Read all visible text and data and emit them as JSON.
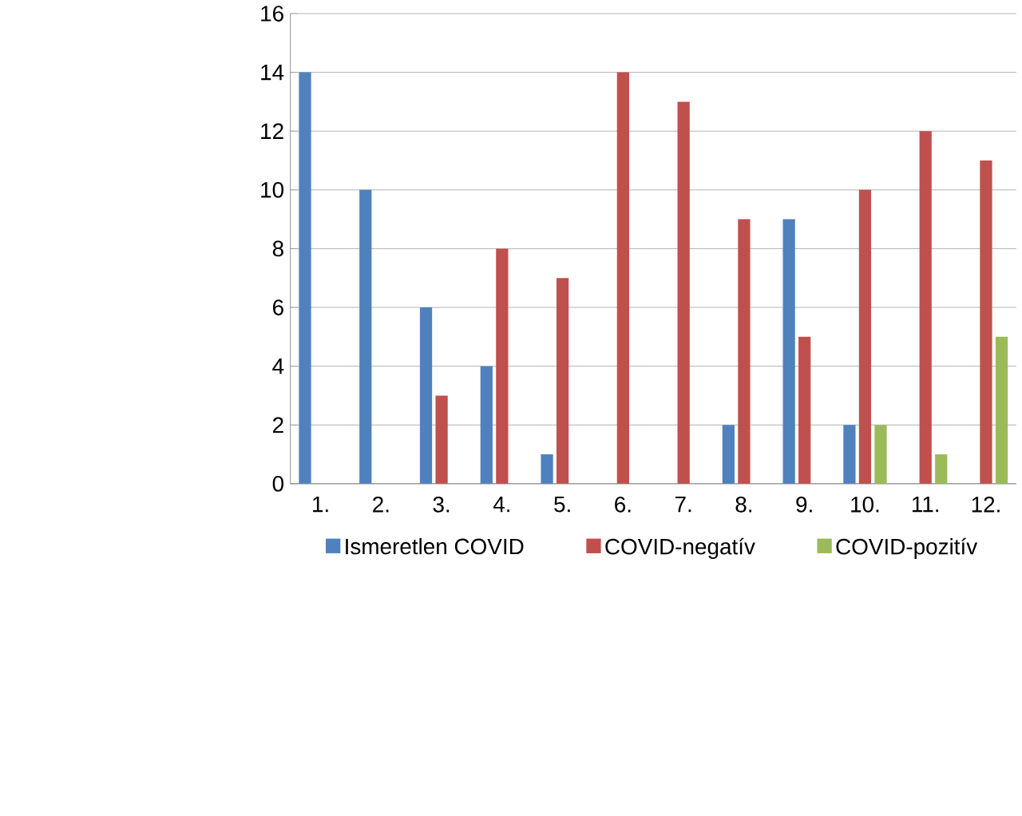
{
  "chart_data": {
    "type": "bar",
    "categories": [
      "1.",
      "2.",
      "3.",
      "4.",
      "5.",
      "6.",
      "7.",
      "8.",
      "9.",
      "10.",
      "11.",
      "12."
    ],
    "series": [
      {
        "name": "Ismeretlen COVID",
        "color": "#4f81bd",
        "values": [
          14,
          10,
          6,
          4,
          1,
          0,
          0,
          2,
          9,
          2,
          0,
          0
        ]
      },
      {
        "name": "COVID-negatív",
        "color": "#c0504d",
        "values": [
          0,
          0,
          3,
          8,
          7,
          14,
          13,
          9,
          5,
          10,
          12,
          11
        ]
      },
      {
        "name": "COVID-pozitív",
        "color": "#9bbb59",
        "values": [
          0,
          0,
          0,
          0,
          0,
          0,
          0,
          0,
          0,
          2,
          1,
          5
        ]
      }
    ],
    "ylim": [
      0,
      16
    ],
    "yticks": [
      0,
      2,
      4,
      6,
      8,
      10,
      12,
      14,
      16
    ],
    "grid": "y",
    "legend": "bottom"
  }
}
